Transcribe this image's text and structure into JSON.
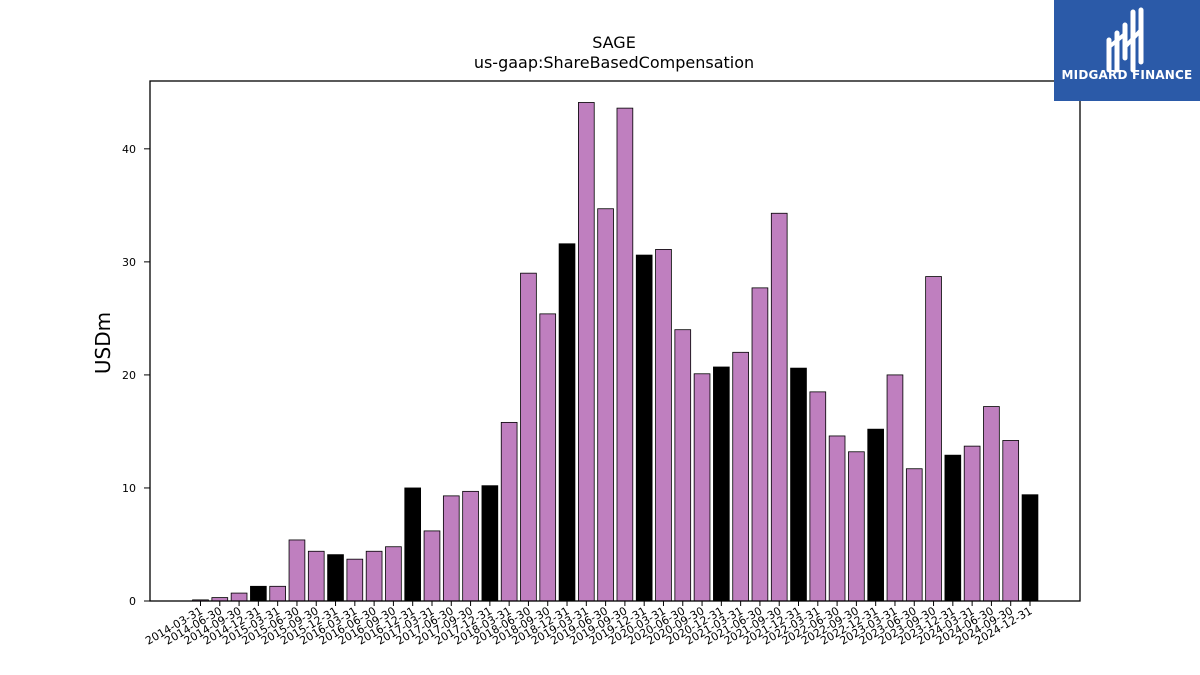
{
  "logo": {
    "text": "MIDGARD FINANCE"
  },
  "colors": {
    "regular": "#bf7fbf",
    "year_end": "#000000",
    "logo_bg": "#2b5aa8"
  },
  "chart_data": {
    "type": "bar",
    "title": "SAGE",
    "subtitle": "us-gaap:ShareBasedCompensation",
    "xlabel": "",
    "ylabel": "USDm",
    "ylim": [
      0,
      46
    ],
    "yticks": [
      0,
      10,
      20,
      30,
      40
    ],
    "grid": false,
    "categories": [
      "2014-03-31",
      "2014-06-30",
      "2014-09-30",
      "2014-12-31",
      "2015-03-31",
      "2015-06-30",
      "2015-09-30",
      "2015-12-31",
      "2016-03-31",
      "2016-06-30",
      "2016-09-30",
      "2016-12-31",
      "2017-03-31",
      "2017-06-30",
      "2017-09-30",
      "2017-12-31",
      "2018-03-31",
      "2018-06-30",
      "2018-09-30",
      "2018-12-31",
      "2019-03-31",
      "2019-06-30",
      "2019-09-30",
      "2019-12-31",
      "2020-03-31",
      "2020-06-30",
      "2020-09-30",
      "2020-12-31",
      "2021-03-31",
      "2021-06-30",
      "2021-09-30",
      "2021-12-31",
      "2022-03-31",
      "2022-06-30",
      "2022-09-30",
      "2022-12-31",
      "2023-03-31",
      "2023-06-30",
      "2023-09-30",
      "2023-12-31",
      "2024-03-31",
      "2024-06-30",
      "2024-09-30",
      "2024-12-31"
    ],
    "values": [
      0.1,
      0.3,
      0.7,
      1.3,
      1.3,
      5.4,
      4.4,
      4.1,
      3.7,
      4.4,
      4.8,
      10.0,
      6.2,
      9.3,
      9.7,
      10.2,
      15.8,
      29.0,
      25.4,
      31.6,
      44.1,
      34.7,
      43.6,
      30.6,
      31.1,
      24.0,
      20.1,
      20.7,
      22.0,
      27.7,
      34.3,
      20.6,
      18.5,
      14.6,
      13.2,
      15.2,
      20.0,
      11.7,
      28.7,
      12.9,
      13.7,
      17.2,
      14.2,
      9.4
    ]
  }
}
